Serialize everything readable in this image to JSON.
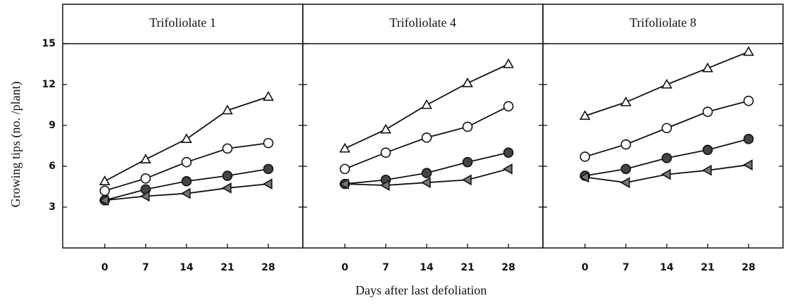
{
  "ylabel": "Growing tips (no. /plant)",
  "xlabel": "Days after last defoliation",
  "chart_data": [
    {
      "type": "line",
      "title": "Trifoliolate 1",
      "x": [
        0,
        7,
        14,
        21,
        28
      ],
      "xlim": [
        -7.2,
        33.9
      ],
      "xticks": [
        0,
        7,
        14,
        21,
        28
      ],
      "ylim": [
        0,
        15
      ],
      "yticks": [
        3,
        6,
        9,
        12,
        15
      ],
      "series": [
        {
          "marker": "triangle",
          "color": "#111",
          "values": [
            4.9,
            6.5,
            8.0,
            10.1,
            11.1
          ]
        },
        {
          "marker": "circle",
          "color": "#111",
          "values": [
            4.2,
            5.1,
            6.3,
            7.3,
            7.7
          ]
        },
        {
          "marker": "circle-filled",
          "color": "#444",
          "values": [
            3.5,
            4.3,
            4.9,
            5.3,
            5.8
          ]
        },
        {
          "marker": "triangle-left",
          "color": "#777",
          "values": [
            3.5,
            3.8,
            4.0,
            4.4,
            4.7
          ]
        }
      ]
    },
    {
      "type": "line",
      "title": "Trifoliolate 4",
      "x": [
        0,
        7,
        14,
        21,
        28
      ],
      "xlim": [
        -7.2,
        33.9
      ],
      "xticks": [
        0,
        7,
        14,
        21,
        28
      ],
      "ylim": [
        0,
        15
      ],
      "yticks": [
        3,
        6,
        9,
        12,
        15
      ],
      "series": [
        {
          "marker": "triangle",
          "color": "#111",
          "values": [
            7.3,
            8.7,
            10.5,
            12.1,
            13.5
          ]
        },
        {
          "marker": "circle",
          "color": "#111",
          "values": [
            5.8,
            7.0,
            8.1,
            8.9,
            10.4
          ]
        },
        {
          "marker": "circle-filled",
          "color": "#444",
          "values": [
            4.7,
            5.0,
            5.5,
            6.3,
            7.0
          ]
        },
        {
          "marker": "triangle-left",
          "color": "#777",
          "values": [
            4.7,
            4.6,
            4.8,
            5.0,
            5.8
          ]
        }
      ]
    },
    {
      "type": "line",
      "title": "Trifoliolate 8",
      "x": [
        0,
        7,
        14,
        21,
        28
      ],
      "xlim": [
        -7.2,
        33.9
      ],
      "xticks": [
        0,
        7,
        14,
        21,
        28
      ],
      "ylim": [
        0,
        15
      ],
      "yticks": [
        3,
        6,
        9,
        12,
        15
      ],
      "series": [
        {
          "marker": "triangle",
          "color": "#111",
          "values": [
            9.7,
            10.7,
            12.0,
            13.2,
            14.4
          ]
        },
        {
          "marker": "circle",
          "color": "#111",
          "values": [
            6.7,
            7.6,
            8.8,
            10.0,
            10.8
          ]
        },
        {
          "marker": "circle-filled",
          "color": "#444",
          "values": [
            5.3,
            5.8,
            6.6,
            7.2,
            8.0
          ]
        },
        {
          "marker": "triangle-left",
          "color": "#777",
          "values": [
            5.2,
            4.8,
            5.4,
            5.7,
            6.1
          ]
        }
      ]
    }
  ]
}
